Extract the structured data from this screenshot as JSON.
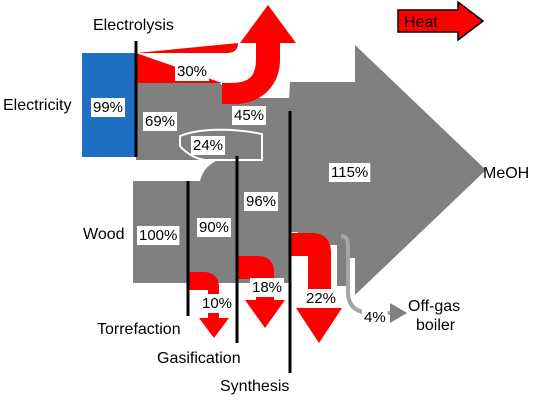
{
  "diagram": {
    "type": "sankey",
    "colors": {
      "electricity": "#1f6fc5",
      "flow": "#808080",
      "heat": "#ff0000",
      "process_line": "#000000",
      "text": "#000000",
      "label_box": "#ffffff"
    },
    "legend": {
      "label": "Heat",
      "color": "#ff0000"
    },
    "inputs": [
      {
        "label": "Electricity",
        "value": "99%"
      },
      {
        "label": "Wood",
        "value": "100%"
      }
    ],
    "steps": [
      {
        "label": "Electrolysis"
      },
      {
        "label": "Torrefaction"
      },
      {
        "label": "Gasification"
      },
      {
        "label": "Synthesis"
      }
    ],
    "flows": {
      "electrolysis_heat": "30%",
      "electrolysis_to_mix": "69%",
      "hydrogen_top": "45%",
      "hydrogen_to_gas": "24%",
      "wood_after_torrefaction": "90%",
      "syngas": "96%",
      "product": "115%"
    },
    "losses": {
      "torrefaction_heat": "10%",
      "gasification_heat": "18%",
      "synthesis_heat": "22%",
      "offgas": "4%"
    },
    "outputs": {
      "product": "MeOH",
      "offgas": "Off-gas\nboiler"
    }
  }
}
